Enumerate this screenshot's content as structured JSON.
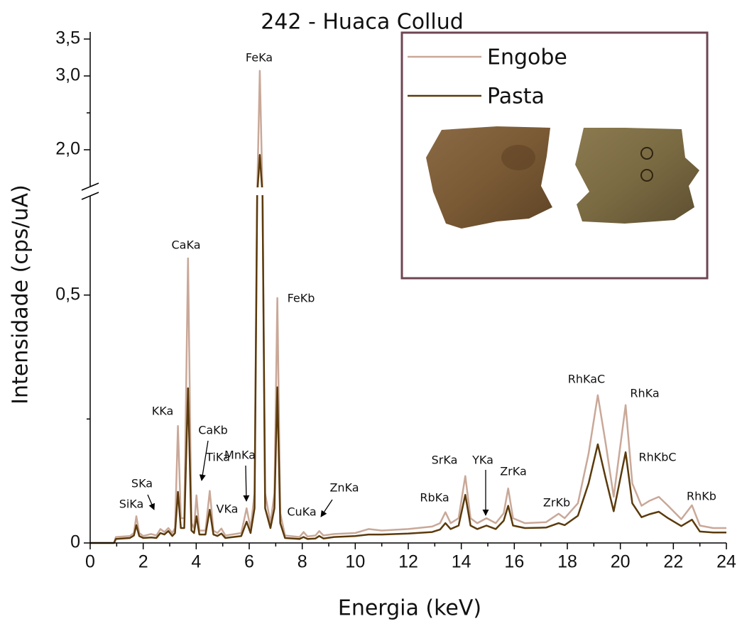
{
  "chart_data": {
    "type": "line",
    "title": "242 - Huaca Collud",
    "x_label": "Energia (keV)",
    "y_label": "Intensidade (cps/uA)",
    "xlim": [
      0,
      24
    ],
    "xticks": [
      0,
      2,
      4,
      6,
      8,
      10,
      12,
      14,
      16,
      18,
      20,
      22,
      24
    ],
    "xminorticks": [
      1,
      3,
      5,
      7,
      9,
      11,
      13,
      15,
      17,
      19,
      21,
      23
    ],
    "ylim": [
      0,
      3.5
    ],
    "ybreak": [
      0.7,
      1.5
    ],
    "yticks": [
      0,
      {
        "value": 0.5,
        "label": "0,5"
      },
      {
        "value": 2,
        "label": "2,0"
      },
      {
        "value": 3,
        "label": "3,0"
      },
      {
        "value": 3.5,
        "label": "3,5"
      }
    ],
    "yminorticks": [
      0.25,
      2.5
    ],
    "legend": "upper right",
    "x": [
      0,
      0.9,
      0.97,
      1.5,
      1.65,
      1.74,
      1.85,
      2.0,
      2.3,
      2.5,
      2.65,
      2.8,
      2.95,
      3.1,
      3.2,
      3.31,
      3.42,
      3.55,
      3.69,
      3.82,
      3.92,
      4.01,
      4.12,
      4.35,
      4.51,
      4.65,
      4.8,
      4.95,
      5.1,
      5.7,
      5.9,
      6.05,
      6.2,
      6.3,
      6.4,
      6.5,
      6.6,
      6.8,
      6.95,
      7.06,
      7.17,
      7.35,
      7.9,
      8.05,
      8.2,
      8.5,
      8.64,
      8.8,
      9.2,
      10.0,
      10.5,
      11.0,
      12.0,
      12.9,
      13.2,
      13.4,
      13.6,
      13.9,
      14.15,
      14.35,
      14.6,
      14.95,
      15.3,
      15.6,
      15.77,
      15.95,
      16.4,
      17.2,
      17.67,
      17.9,
      18.4,
      18.8,
      19.15,
      19.45,
      19.75,
      20.2,
      20.45,
      20.8,
      21.1,
      21.45,
      21.8,
      22.3,
      22.7,
      23.0,
      23.5,
      24.0
    ],
    "series": [
      {
        "name": "Engobe",
        "color": "#c9a898",
        "values": [
          0,
          0,
          0.012,
          0.014,
          0.02,
          0.054,
          0.02,
          0.014,
          0.018,
          0.015,
          0.028,
          0.022,
          0.03,
          0.02,
          0.03,
          0.236,
          0.05,
          0.05,
          0.574,
          0.04,
          0.03,
          0.096,
          0.025,
          0.025,
          0.105,
          0.025,
          0.02,
          0.029,
          0.015,
          0.02,
          0.07,
          0.03,
          0.1,
          0.9,
          3.07,
          0.9,
          0.1,
          0.04,
          0.1,
          0.494,
          0.06,
          0.015,
          0.012,
          0.022,
          0.013,
          0.015,
          0.024,
          0.015,
          0.018,
          0.02,
          0.028,
          0.025,
          0.028,
          0.033,
          0.04,
          0.062,
          0.04,
          0.05,
          0.135,
          0.05,
          0.04,
          0.05,
          0.04,
          0.06,
          0.11,
          0.05,
          0.04,
          0.042,
          0.059,
          0.05,
          0.08,
          0.18,
          0.298,
          0.2,
          0.093,
          0.278,
          0.12,
          0.075,
          0.085,
          0.093,
          0.075,
          0.048,
          0.076,
          0.035,
          0.03,
          0.03
        ]
      },
      {
        "name": "Pasta",
        "color": "#5b3a0b",
        "values": [
          0,
          0,
          0.008,
          0.01,
          0.015,
          0.036,
          0.014,
          0.01,
          0.011,
          0.01,
          0.02,
          0.017,
          0.024,
          0.014,
          0.02,
          0.103,
          0.03,
          0.03,
          0.312,
          0.025,
          0.02,
          0.054,
          0.017,
          0.017,
          0.067,
          0.017,
          0.014,
          0.019,
          0.01,
          0.014,
          0.043,
          0.02,
          0.07,
          0.8,
          1.93,
          0.8,
          0.07,
          0.03,
          0.07,
          0.314,
          0.04,
          0.01,
          0.008,
          0.012,
          0.008,
          0.009,
          0.014,
          0.009,
          0.012,
          0.014,
          0.017,
          0.017,
          0.019,
          0.022,
          0.027,
          0.04,
          0.028,
          0.035,
          0.097,
          0.035,
          0.028,
          0.035,
          0.028,
          0.045,
          0.075,
          0.035,
          0.03,
          0.031,
          0.04,
          0.036,
          0.055,
          0.12,
          0.199,
          0.13,
          0.064,
          0.183,
          0.08,
          0.052,
          0.058,
          0.063,
          0.05,
          0.034,
          0.047,
          0.023,
          0.021,
          0.021
        ]
      }
    ],
    "annotations": [
      "SiKa",
      "SKa",
      "KKa",
      "CaKa",
      "CaKb",
      "TiKa",
      "VKa",
      "MnKa",
      "FeKa",
      "FeKb",
      "CuKa",
      "ZnKa",
      "RbKa",
      "SrKa",
      "YKa",
      "ZrKa",
      "ZrKb",
      "RhKaC",
      "RhKa",
      "RhKbC",
      "RhKb"
    ]
  }
}
